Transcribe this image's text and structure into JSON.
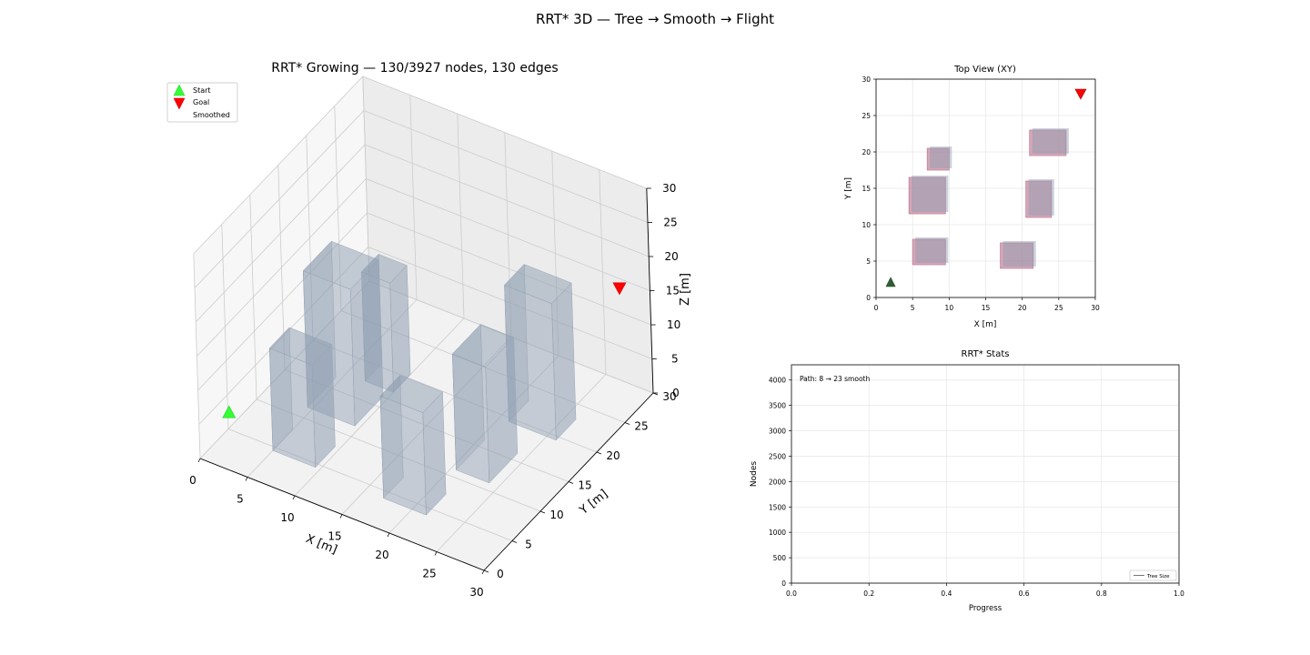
{
  "figure": {
    "title": "RRT* 3D — Tree → Smooth → Flight"
  },
  "colors": {
    "start": "#33ff33",
    "goal": "#ff0000",
    "obstacle": "#8c9cb0",
    "obstacle_top": "#c2829a",
    "grid": "#cccccc",
    "tree": "#777777"
  },
  "chart_data": [
    {
      "type": "scatter",
      "title": "RRT* Growing — 130/3927 nodes, 130 edges",
      "view": "3d",
      "xlabel": "X [m]",
      "ylabel": "Y [m]",
      "zlabel": "Z [m]",
      "xlim": [
        0,
        30
      ],
      "ylim": [
        0,
        30
      ],
      "zlim": [
        0,
        30
      ],
      "xticks": [
        0,
        5,
        10,
        15,
        20,
        25,
        30
      ],
      "yticks": [
        0,
        5,
        10,
        15,
        20,
        25,
        30
      ],
      "zticks": [
        0,
        5,
        10,
        15,
        20,
        25,
        30
      ],
      "grid": true,
      "legend": {
        "position": "top-left",
        "entries": [
          "Start",
          "Goal",
          "Smoothed"
        ]
      },
      "start": [
        2,
        2,
        6
      ],
      "goal": [
        28,
        28,
        16
      ],
      "obstacles": [
        {
          "x": [
            5,
            9.5
          ],
          "y": [
            4.5,
            8
          ],
          "z": [
            0,
            15
          ]
        },
        {
          "x": [
            17,
            21.5
          ],
          "y": [
            4,
            7.5
          ],
          "z": [
            0,
            15
          ]
        },
        {
          "x": [
            4.5,
            9.5
          ],
          "y": [
            11.5,
            16.5
          ],
          "z": [
            0,
            20
          ]
        },
        {
          "x": [
            20.5,
            24
          ],
          "y": [
            11,
            16
          ],
          "z": [
            0,
            17
          ]
        },
        {
          "x": [
            7,
            10
          ],
          "y": [
            17.5,
            20.5
          ],
          "z": [
            0,
            16
          ]
        },
        {
          "x": [
            21,
            26
          ],
          "y": [
            19.5,
            23
          ],
          "z": [
            0,
            20
          ]
        }
      ]
    },
    {
      "type": "scatter",
      "title": "Top View (XY)",
      "xlabel": "X [m]",
      "ylabel": "Y [m]",
      "xlim": [
        0,
        30
      ],
      "ylim": [
        0,
        30
      ],
      "xticks": [
        0,
        5,
        10,
        15,
        20,
        25,
        30
      ],
      "yticks": [
        0,
        5,
        10,
        15,
        20,
        25,
        30
      ],
      "grid": true,
      "start": [
        2,
        2
      ],
      "goal": [
        28,
        28
      ],
      "rects": [
        {
          "x": [
            5,
            9.5
          ],
          "y": [
            4.5,
            8
          ]
        },
        {
          "x": [
            17,
            21.5
          ],
          "y": [
            4,
            7.5
          ]
        },
        {
          "x": [
            4.5,
            9.5
          ],
          "y": [
            11.5,
            16.5
          ]
        },
        {
          "x": [
            20.5,
            24
          ],
          "y": [
            11,
            16
          ]
        },
        {
          "x": [
            7,
            10
          ],
          "y": [
            17.5,
            20.5
          ]
        },
        {
          "x": [
            21,
            26
          ],
          "y": [
            19.5,
            23
          ]
        }
      ]
    },
    {
      "type": "line",
      "title": "RRT* Stats",
      "xlabel": "Progress",
      "ylabel": "Nodes",
      "xlim": [
        0,
        1
      ],
      "ylim": [
        0,
        4300
      ],
      "xticks": [
        "0.0",
        "0.2",
        "0.4",
        "0.6",
        "0.8",
        "1.0"
      ],
      "yticks": [
        0,
        500,
        1000,
        1500,
        2000,
        2500,
        3000,
        3500,
        4000
      ],
      "grid": true,
      "annotation": "Path: 8 → 23 smooth",
      "legend": {
        "position": "bottom-right",
        "entries": [
          "Tree Size"
        ]
      },
      "series": [
        {
          "name": "Tree Size",
          "x": [],
          "y": []
        }
      ]
    }
  ]
}
